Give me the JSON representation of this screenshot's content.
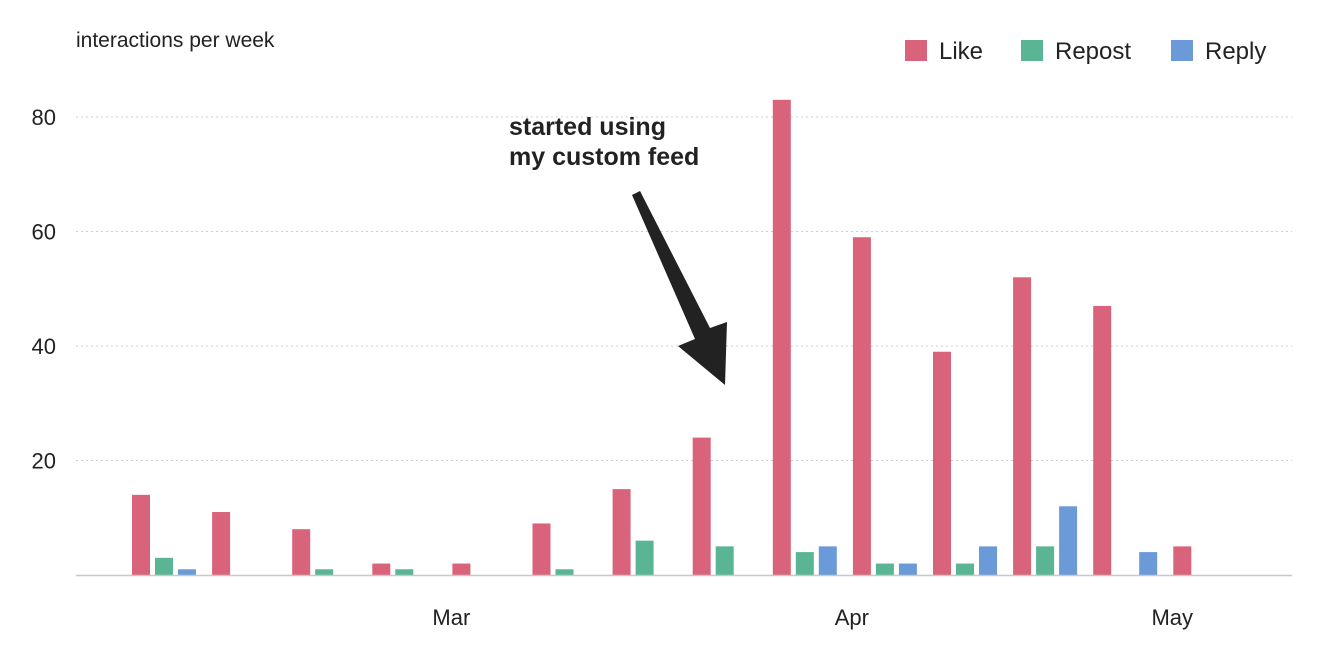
{
  "chart_data": {
    "type": "bar",
    "ylabel": "interactions per week",
    "ylim": [
      0,
      90
    ],
    "yticks": [
      20,
      40,
      60,
      80
    ],
    "grid": "horizontal dotted",
    "legend_position": "top-right",
    "x_tick_labels": [
      {
        "label": "Mar",
        "after_week_index": 3
      },
      {
        "label": "Apr",
        "after_week_index": 8
      },
      {
        "label": "May",
        "after_week_index": 12
      }
    ],
    "week_count": 14,
    "series": [
      {
        "name": "Like",
        "color": "#d9637a",
        "values": [
          14,
          11,
          8,
          2,
          2,
          9,
          15,
          24,
          83,
          59,
          39,
          52,
          47,
          5
        ]
      },
      {
        "name": "Repost",
        "color": "#5ab595",
        "values": [
          3,
          0,
          1,
          1,
          0,
          1,
          6,
          5,
          4,
          2,
          2,
          5,
          0,
          0
        ]
      },
      {
        "name": "Reply",
        "color": "#6a9bd8",
        "values": [
          1,
          0,
          0,
          0,
          0,
          0,
          0,
          0,
          5,
          2,
          5,
          12,
          4,
          0
        ]
      }
    ],
    "annotation": {
      "lines": [
        "started using",
        "my custom feed"
      ],
      "points_to_week_index": 7
    }
  }
}
